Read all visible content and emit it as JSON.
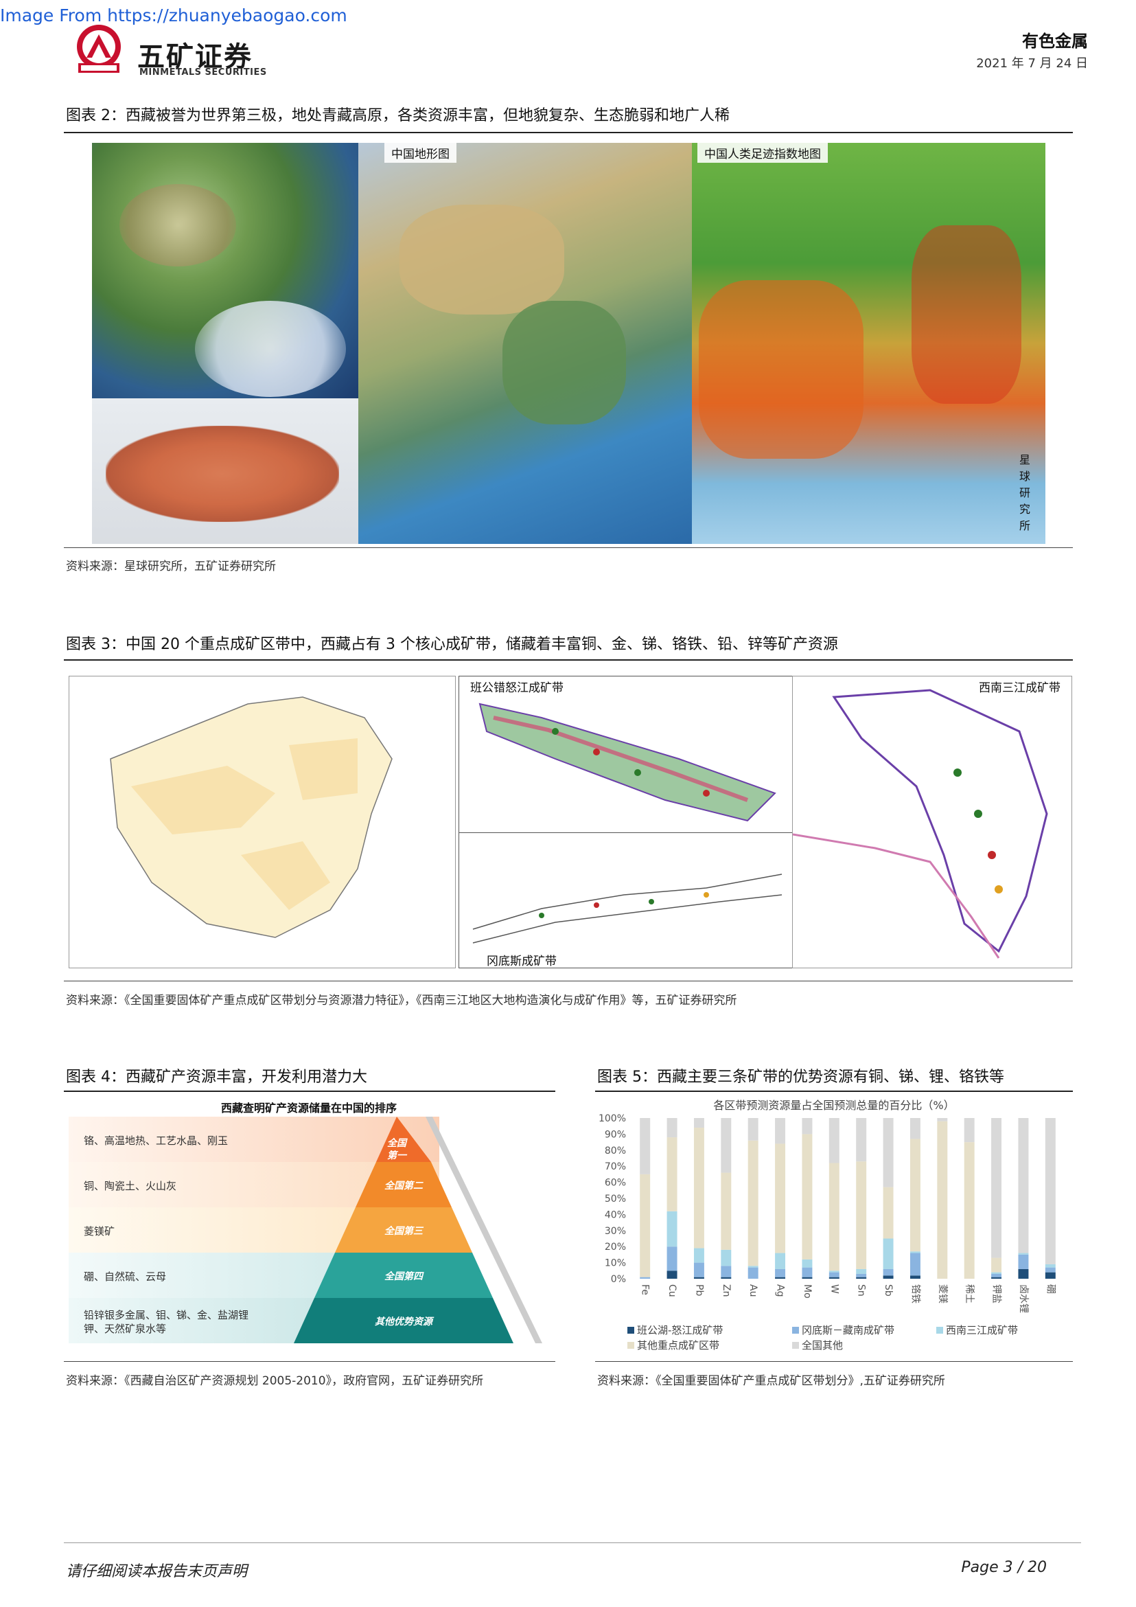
{
  "watermark": "Image From https://zhuanyebaogao.com",
  "brand": {
    "name_cn": "五矿证券",
    "name_en": "MINMETALS SECURITIES",
    "logo_text": "MINMETALS"
  },
  "header": {
    "sector": "有色金属",
    "date": "2021 年 7 月 24 日"
  },
  "fig2": {
    "title": "图表 2：西藏被誉为世界第三极，地处青藏高原，各类资源丰富，但地貌复杂、生态脆弱和地广人稀",
    "tag_terrain": "中国地形图",
    "tag_footprint": "中国人类足迹指数地图",
    "watermark_vertical": "星球研究所",
    "source": "资料来源：星球研究所，五矿证券研究所"
  },
  "fig3": {
    "title": "图表 3：中国 20 个重点成矿区带中，西藏占有 3 个核心成矿带，储藏着丰富铜、金、锑、铬铁、铅、锌等矿产资源",
    "tag_bangong": "班公错怒江成矿带",
    "tag_sanjiang": "西南三江成矿带",
    "tag_gangdise": "冈底斯成矿带",
    "source": "资料来源：《全国重要固体矿产重点成矿区带划分与资源潜力特征》，《西南三江地区大地构造演化与成矿作用》等，五矿证券研究所"
  },
  "fig4": {
    "title": "图表 4：西藏矿产资源丰富，开发利用潜力大",
    "chart_heading": "西藏查明矿产资源储量在中国的排序",
    "rows": [
      {
        "items": "铬、高温地热、工艺水晶、刚玉",
        "tier": "全国第一"
      },
      {
        "items": "铜、陶瓷土、火山灰",
        "tier": "全国第二"
      },
      {
        "items": "菱镁矿",
        "tier": "全国第三"
      },
      {
        "items": "硼、自然硫、云母",
        "tier": "全国第四"
      },
      {
        "items": "铅锌银多金属、钼、锑、金、盐湖锂钾、天然矿泉水等",
        "tier": "其他优势资源"
      }
    ],
    "source": "资料来源：《西藏自治区矿产资源规划 2005-2010》，政府官网，五矿证券研究所"
  },
  "fig5": {
    "title": "图表 5：西藏主要三条矿带的优势资源有铜、锑、锂、铬铁等",
    "source": "资料来源：《全国重要固体矿产重点成矿区带划分》,五矿证券研究所"
  },
  "chart_data": {
    "type": "bar",
    "stacked": true,
    "title": "各区带预测资源量占全国预测总量的百分比（%）",
    "categories": [
      "Fe",
      "Cu",
      "Pb",
      "Zn",
      "Au",
      "Ag",
      "Mo",
      "W",
      "Sn",
      "Sb",
      "铬铁",
      "菱镁",
      "稀土",
      "钾盐",
      "卤水锂",
      "硼"
    ],
    "y_ticks": [
      "0%",
      "10%",
      "20%",
      "30%",
      "40%",
      "50%",
      "60%",
      "70%",
      "80%",
      "90%",
      "100%"
    ],
    "ylim": [
      0,
      100
    ],
    "legend_position": "bottom",
    "series": [
      {
        "name": "班公湖-怒江成矿带",
        "color": "#1f4e79",
        "values": [
          0,
          5,
          1,
          1,
          0,
          1,
          1,
          1,
          1,
          2,
          2,
          0,
          0,
          1,
          6,
          4
        ]
      },
      {
        "name": "冈底斯－藏南成矿带",
        "color": "#8ab4e0",
        "values": [
          1,
          15,
          9,
          7,
          7,
          5,
          6,
          3,
          2,
          4,
          14,
          0,
          0,
          2,
          9,
          3
        ]
      },
      {
        "name": "西南三江成矿带",
        "color": "#a8d8e8",
        "values": [
          0,
          22,
          9,
          10,
          1,
          10,
          5,
          1,
          3,
          19,
          1,
          0,
          0,
          1,
          1,
          2
        ]
      },
      {
        "name": "其他重点成矿区带",
        "color": "#e6dfc8",
        "values": [
          64,
          46,
          75,
          48,
          78,
          68,
          78,
          67,
          67,
          32,
          70,
          98,
          85,
          9,
          0,
          0
        ]
      },
      {
        "name": "全国其他",
        "color": "#d9d9d9",
        "values": [
          35,
          12,
          6,
          34,
          14,
          16,
          10,
          28,
          27,
          43,
          13,
          2,
          15,
          87,
          84,
          91
        ]
      }
    ]
  },
  "footer": {
    "disclaimer": "请仔细阅读本报告末页声明",
    "page": "Page   3 / 20"
  }
}
